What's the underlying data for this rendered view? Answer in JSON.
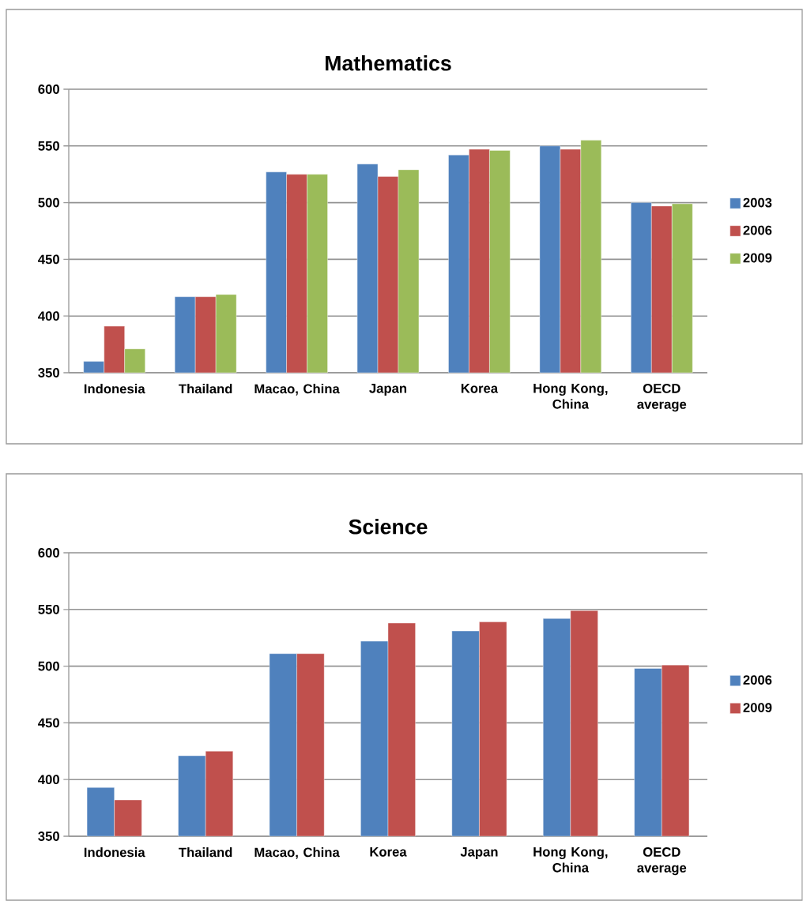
{
  "chart_data": [
    {
      "type": "bar",
      "title": "Mathematics",
      "categories": [
        "Indonesia",
        "Thailand",
        "Macao, China",
        "Japan",
        "Korea",
        "Hong Kong, China",
        "OECD average"
      ],
      "series": [
        {
          "name": "2003",
          "color": "#4f81bd",
          "values": [
            360,
            417,
            527,
            534,
            542,
            550,
            500
          ]
        },
        {
          "name": "2006",
          "color": "#c0504d",
          "values": [
            391,
            417,
            525,
            523,
            547,
            547,
            497
          ]
        },
        {
          "name": "2009",
          "color": "#9bbb59",
          "values": [
            371,
            419,
            525,
            529,
            546,
            555,
            499
          ]
        }
      ],
      "ylim": [
        350,
        600
      ],
      "yticks": [
        350,
        400,
        450,
        500,
        550,
        600
      ],
      "grid": "y",
      "legend": "right"
    },
    {
      "type": "bar",
      "title": "Science",
      "categories": [
        "Indonesia",
        "Thailand",
        "Macao, China",
        "Korea",
        "Japan",
        "Hong Kong, China",
        "OECD average"
      ],
      "series": [
        {
          "name": "2006",
          "color": "#4f81bd",
          "values": [
            393,
            421,
            511,
            522,
            531,
            542,
            498
          ]
        },
        {
          "name": "2009",
          "color": "#c0504d",
          "values": [
            382,
            425,
            511,
            538,
            539,
            549,
            501
          ]
        }
      ],
      "ylim": [
        350,
        600
      ],
      "yticks": [
        350,
        400,
        450,
        500,
        550,
        600
      ],
      "grid": "y",
      "legend": "right"
    }
  ]
}
